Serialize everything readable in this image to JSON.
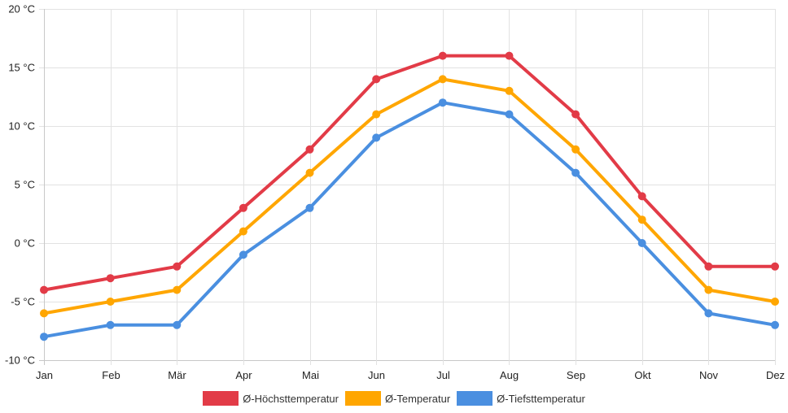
{
  "chart_data": {
    "type": "line",
    "title": "",
    "xlabel": "",
    "ylabel": "",
    "categories": [
      "Jan",
      "Feb",
      "Mär",
      "Apr",
      "Mai",
      "Jun",
      "Jul",
      "Aug",
      "Sep",
      "Okt",
      "Nov",
      "Dez"
    ],
    "ylim": [
      -10,
      20
    ],
    "yticks": [
      20,
      15,
      10,
      5,
      0,
      -5,
      -10
    ],
    "ytick_labels": [
      "20 °C",
      "15 °C",
      "10 °C",
      "5 °C",
      "0 °C",
      "-5 °C",
      "-10 °C"
    ],
    "grid": true,
    "legend_position": "bottom",
    "series": [
      {
        "name": "Ø-Höchsttemperatur",
        "color": "#e23b47",
        "values": [
          -4,
          -3,
          -2,
          3,
          8,
          14,
          16,
          16,
          11,
          4,
          -2,
          -2
        ]
      },
      {
        "name": "Ø-Temperatur",
        "color": "#ffa600",
        "values": [
          -6,
          -5,
          -4,
          1,
          6,
          11,
          14,
          13,
          8,
          2,
          -4,
          -5
        ]
      },
      {
        "name": "Ø-Tiefsttemperatur",
        "color": "#4a8fe0",
        "values": [
          -8,
          -7,
          -7,
          -1,
          3,
          9,
          12,
          11,
          6,
          0,
          -6,
          -7
        ]
      }
    ]
  }
}
